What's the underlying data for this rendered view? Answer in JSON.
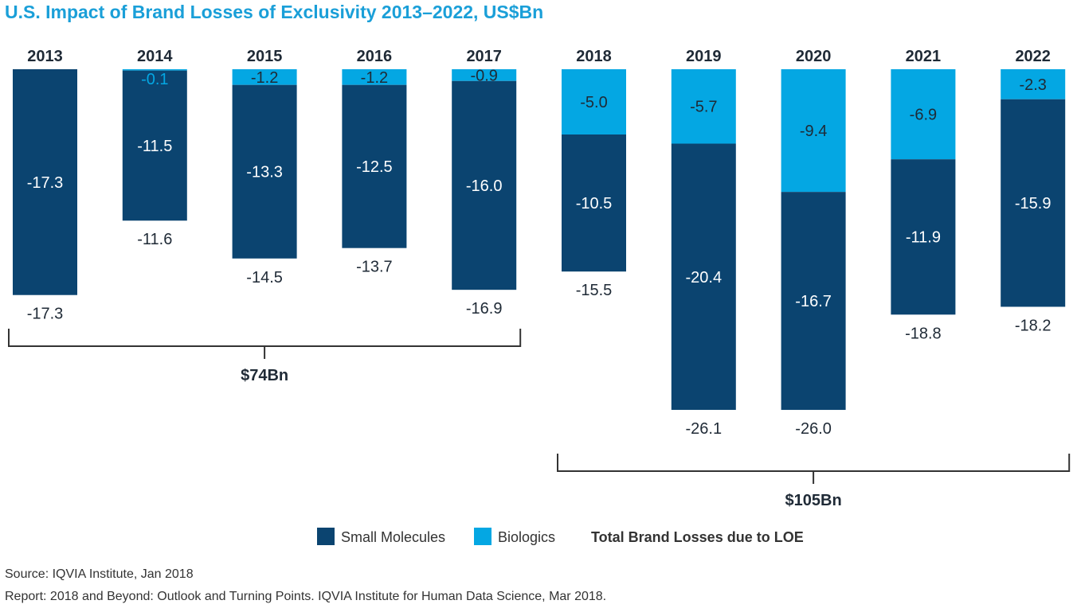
{
  "chart_data": {
    "type": "bar",
    "stacked": true,
    "title": "U.S. Impact of Brand Losses of Exclusivity 2013–2022, US$Bn",
    "categories": [
      "2013",
      "2014",
      "2015",
      "2016",
      "2017",
      "2018",
      "2019",
      "2020",
      "2021",
      "2022"
    ],
    "series": [
      {
        "name": "Small Molecules",
        "color": "#0b4470",
        "values": [
          -17.3,
          -11.5,
          -13.3,
          -12.5,
          -16.0,
          -10.5,
          -20.4,
          -16.7,
          -11.9,
          -15.9
        ],
        "labels": [
          "-17.3",
          "-11.5",
          "-13.3",
          "-12.5",
          "-16.0",
          "-10.5",
          "-20.4",
          "-16.7",
          "-11.9",
          "-15.9"
        ]
      },
      {
        "name": "Biologics",
        "color": "#04a7e3",
        "values": [
          0,
          -0.1,
          -1.2,
          -1.2,
          -0.9,
          -5.0,
          -5.7,
          -9.4,
          -6.9,
          -2.3
        ],
        "labels": [
          "",
          "-0.1",
          "-1.2",
          "-1.2",
          "-0.9",
          "-5.0",
          "-5.7",
          "-9.4",
          "-6.9",
          "-2.3"
        ]
      }
    ],
    "totals": [
      -17.3,
      -11.6,
      -14.5,
      -13.7,
      -16.9,
      -15.5,
      -26.1,
      -26.0,
      -18.8,
      -18.2
    ],
    "total_labels": [
      "-17.3",
      "-11.6",
      "-14.5",
      "-13.7",
      "-16.9",
      "-15.5",
      "-26.1",
      "-26.0",
      "-18.8",
      "-18.2"
    ],
    "brackets": [
      {
        "label": "$74Bn",
        "from": "2013",
        "to": "2017"
      },
      {
        "label": "$105Bn",
        "from": "2018",
        "to": "2022"
      }
    ],
    "legend": {
      "items": [
        "Small Molecules",
        "Biologics"
      ],
      "totals_label": "Total Brand Losses due to LOE",
      "position": "bottom"
    },
    "xaxis_position": "top",
    "grid": false
  },
  "source": {
    "line1": "Source: IQVIA Institute, Jan 2018",
    "line2": "Report: 2018 and Beyond: Outlook and Turning Points. IQVIA Institute for Human Data Science, Mar 2018."
  }
}
